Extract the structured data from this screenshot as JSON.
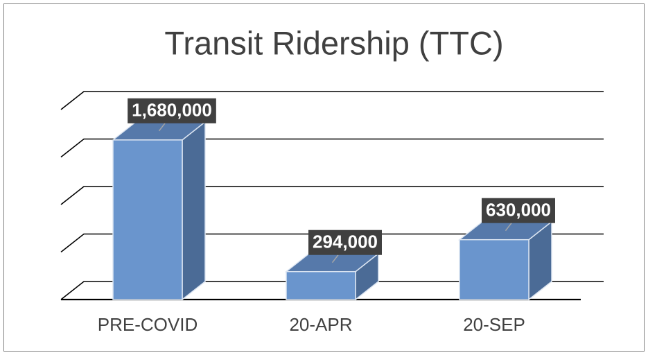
{
  "chart_data": {
    "type": "bar3d",
    "title": "Transit Ridership (TTC)",
    "categories": [
      "PRE-COVID",
      "20-APR",
      "20-SEP"
    ],
    "values": [
      1680000,
      294000,
      630000
    ],
    "value_labels": [
      "1,680,000",
      "294,000",
      "630,000"
    ],
    "color": "#6a95cd",
    "ylim": [
      0,
      2000000
    ],
    "yticks": [
      0,
      500000,
      1000000,
      1500000,
      2000000
    ],
    "grid": true
  }
}
